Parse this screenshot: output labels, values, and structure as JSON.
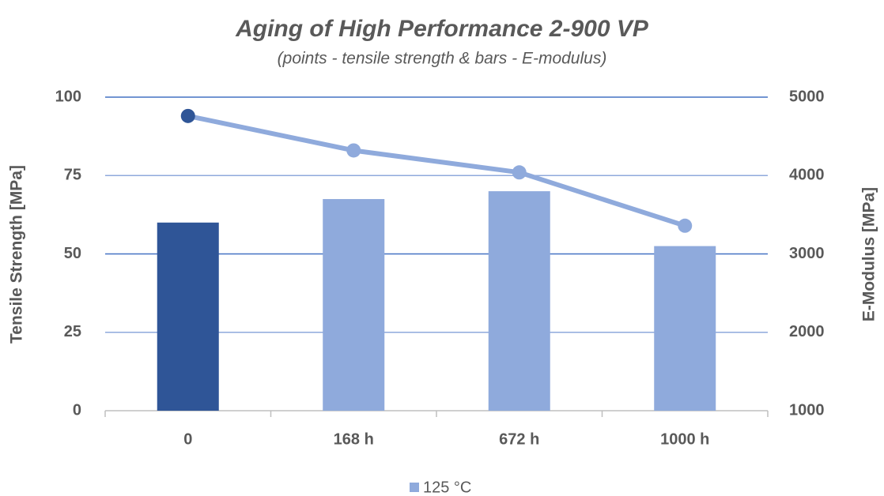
{
  "chart_data": {
    "type": "bar",
    "title": "Aging of High Performance 2-900 VP",
    "subtitle": "(points - tensile strength & bars - E-modulus)",
    "ylabel": "Tensile Strength [MPa]",
    "y2label": "E-Modulus [MPa]",
    "categories": [
      "0",
      "168 h",
      "672 h",
      "1000 h"
    ],
    "ylim": [
      0,
      100
    ],
    "yticks": [
      0,
      25,
      50,
      75,
      100
    ],
    "y2lim": [
      1000,
      5000
    ],
    "y2ticks": [
      1000,
      2000,
      3000,
      4000,
      5000
    ],
    "grid": true,
    "legend": "bottom",
    "series": [
      {
        "name": "125 °C",
        "type": "bar",
        "axis": "y2",
        "color": "#8faadc",
        "colors": [
          "#2f5597",
          "#8faadc",
          "#8faadc",
          "#8faadc"
        ],
        "values": [
          3400,
          3700,
          3800,
          3100
        ]
      },
      {
        "type": "line",
        "axis": "y",
        "color": "#8faadc",
        "colors": [
          "#2f5597",
          "#8faadc",
          "#8faadc",
          "#8faadc"
        ],
        "values": [
          94,
          83,
          76,
          59
        ]
      }
    ]
  }
}
